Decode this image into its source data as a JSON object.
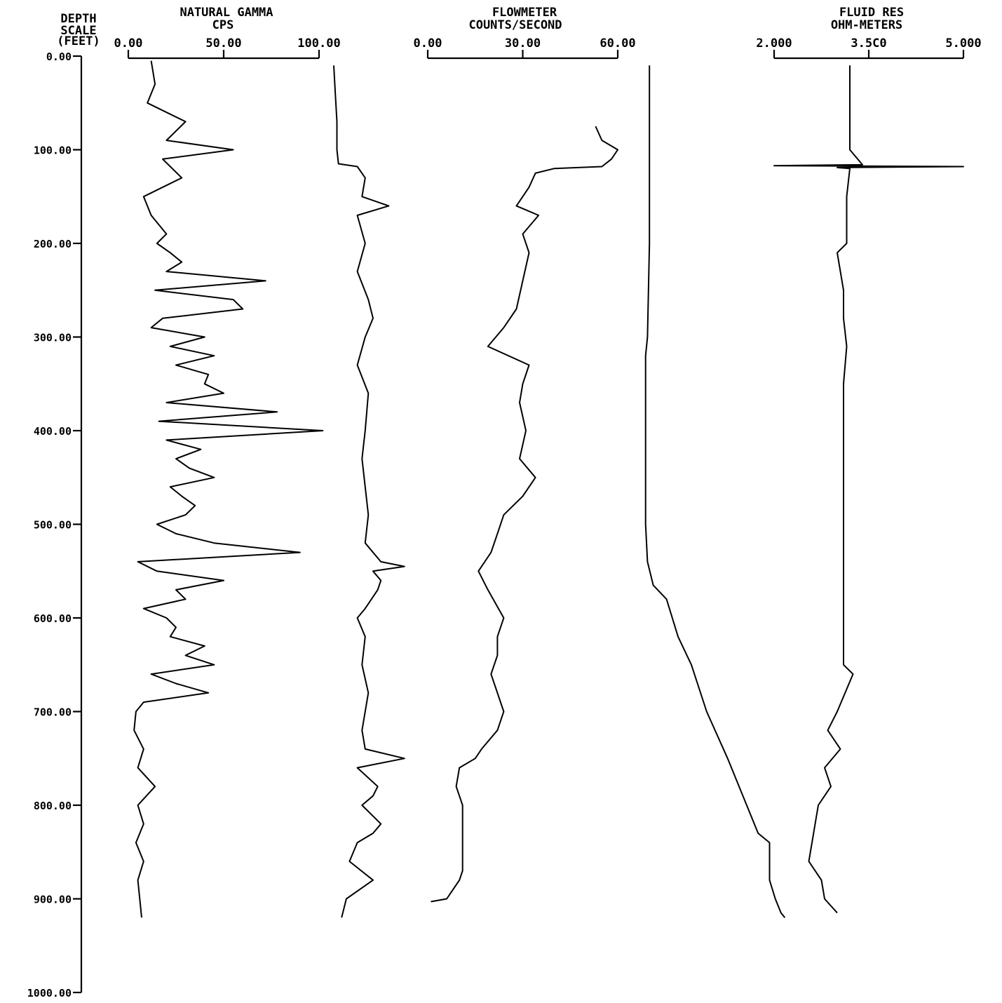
{
  "chart_data": {
    "type": "line",
    "depth_axis": {
      "label_lines": [
        "DEPTH",
        "SCALE",
        "(FEET)"
      ],
      "range": [
        0,
        1000
      ],
      "ticks": [
        0,
        100,
        200,
        300,
        400,
        500,
        600,
        700,
        800,
        900,
        1000
      ],
      "tick_labels": [
        "0.00",
        "100.00",
        "200.00",
        "300.00",
        "400.00",
        "500.00",
        "600.00",
        "700.00",
        "800.00",
        "900.00",
        "1000.00"
      ]
    },
    "tracks": [
      {
        "title_lines": [
          "NATURAL GAMMA",
          "CPS"
        ],
        "range": [
          0,
          100
        ],
        "ticks": [
          0,
          50,
          100
        ],
        "tick_labels": [
          "0.00",
          "50.00",
          "100.00"
        ],
        "series": [
          {
            "depth": [
              5,
              30,
              50,
              70,
              90,
              100,
              110,
              130,
              150,
              170,
              190,
              200,
              210,
              220,
              230,
              240,
              250,
              260,
              270,
              280,
              290,
              300,
              310,
              320,
              330,
              340,
              350,
              360,
              370,
              380,
              390,
              400,
              410,
              420,
              430,
              440,
              450,
              460,
              470,
              480,
              490,
              500,
              510,
              520,
              530,
              540,
              550,
              560,
              570,
              580,
              590,
              600,
              610,
              620,
              630,
              640,
              650,
              660,
              670,
              680,
              690,
              700,
              720,
              740,
              760,
              780,
              800,
              820,
              840,
              860,
              880,
              900,
              920
            ],
            "value": [
              12,
              14,
              10,
              30,
              20,
              55,
              18,
              28,
              8,
              12,
              20,
              15,
              22,
              28,
              20,
              72,
              14,
              55,
              60,
              18,
              12,
              40,
              22,
              45,
              25,
              42,
              40,
              50,
              20,
              78,
              16,
              102,
              20,
              38,
              25,
              32,
              45,
              22,
              28,
              35,
              30,
              15,
              25,
              45,
              90,
              5,
              15,
              50,
              25,
              30,
              8,
              20,
              25,
              22,
              40,
              30,
              45,
              12,
              25,
              42,
              8,
              4,
              3,
              8,
              5,
              14,
              5,
              8,
              4,
              8,
              5,
              6,
              7
            ]
          }
        ]
      },
      {
        "title_lines": [],
        "range": [
          0,
          100
        ],
        "ticks": [],
        "tick_labels": [],
        "series": [
          {
            "depth": [
              10,
              40,
              70,
              100,
              115,
              118,
              130,
              150,
              160,
              170,
              200,
              230,
              260,
              280,
              300,
              330,
              360,
              400,
              430,
              460,
              490,
              520,
              540,
              545,
              550,
              560,
              570,
              590,
              600,
              620,
              650,
              680,
              700,
              720,
              740,
              750,
              760,
              780,
              790,
              800,
              820,
              830,
              840,
              860,
              880,
              900,
              920
            ],
            "value": [
              0,
              1,
              2,
              2,
              3,
              15,
              20,
              18,
              35,
              15,
              20,
              15,
              22,
              25,
              20,
              15,
              22,
              20,
              18,
              20,
              22,
              20,
              30,
              45,
              25,
              30,
              28,
              20,
              15,
              20,
              18,
              22,
              20,
              18,
              20,
              45,
              15,
              28,
              25,
              18,
              30,
              25,
              15,
              10,
              25,
              8,
              5
            ]
          }
        ]
      },
      {
        "title_lines": [
          "FLOWMETER",
          "COUNTS/SECOND"
        ],
        "range": [
          0,
          60
        ],
        "ticks": [
          0,
          30,
          60
        ],
        "tick_labels": [
          "0.00",
          "30.00",
          "60.00"
        ],
        "series": [
          {
            "depth": [
              75,
              90,
              100,
              110,
              118,
              120,
              125,
              140,
              160,
              170,
              190,
              210,
              240,
              270,
              290,
              310,
              330,
              350,
              370,
              400,
              430,
              450,
              470,
              490,
              510,
              530,
              550,
              570,
              600,
              620,
              640,
              660,
              700,
              720,
              740,
              750,
              760,
              780,
              800,
              840,
              870,
              880,
              890,
              900,
              903
            ],
            "value": [
              53,
              55,
              60,
              58,
              55,
              40,
              34,
              32,
              28,
              35,
              30,
              32,
              30,
              28,
              24,
              19,
              32,
              30,
              29,
              31,
              29,
              34,
              30,
              24,
              22,
              20,
              16,
              19,
              24,
              22,
              22,
              20,
              24,
              22,
              17,
              15,
              10,
              9,
              11,
              11,
              11,
              10,
              8,
              6,
              1
            ]
          }
        ]
      },
      {
        "title_lines": [],
        "range": [
          0,
          100
        ],
        "ticks": [],
        "tick_labels": [],
        "series": [
          {
            "depth": [
              10,
              100,
              200,
              300,
              320,
              400,
              500,
              540,
              565,
              580,
              600,
              620,
              650,
              700,
              750,
              800,
              830,
              840,
              880,
              900,
              915,
              920
            ],
            "value": [
              3,
              3,
              3,
              2,
              1,
              1,
              1,
              2,
              5,
              12,
              15,
              18,
              25,
              33,
              44,
              54,
              60,
              66,
              66,
              69,
              72,
              74
            ]
          }
        ]
      },
      {
        "title_lines": [
          "FLUID RES",
          "OHM-METERS"
        ],
        "range": [
          2,
          5
        ],
        "ticks": [
          2,
          3.5,
          5
        ],
        "tick_labels": [
          "2.000",
          "3.5C0",
          "5.000"
        ],
        "series": [
          {
            "depth": [
              10,
              60,
              100,
              116,
              117,
              118,
              119,
              120,
              150,
              200,
              210,
              250,
              280,
              310,
              350,
              400,
              450,
              500,
              550,
              600,
              650,
              660,
              700,
              720,
              740,
              760,
              780,
              800,
              840,
              860,
              880,
              900,
              915
            ],
            "value": [
              3.2,
              3.2,
              3.2,
              3.4,
              2.0,
              5.0,
              3.0,
              3.2,
              3.15,
              3.15,
              3.0,
              3.1,
              3.1,
              3.15,
              3.1,
              3.1,
              3.1,
              3.1,
              3.1,
              3.1,
              3.1,
              3.25,
              3.0,
              2.85,
              3.05,
              2.8,
              2.9,
              2.7,
              2.6,
              2.55,
              2.75,
              2.8,
              3.0
            ]
          }
        ]
      }
    ]
  }
}
